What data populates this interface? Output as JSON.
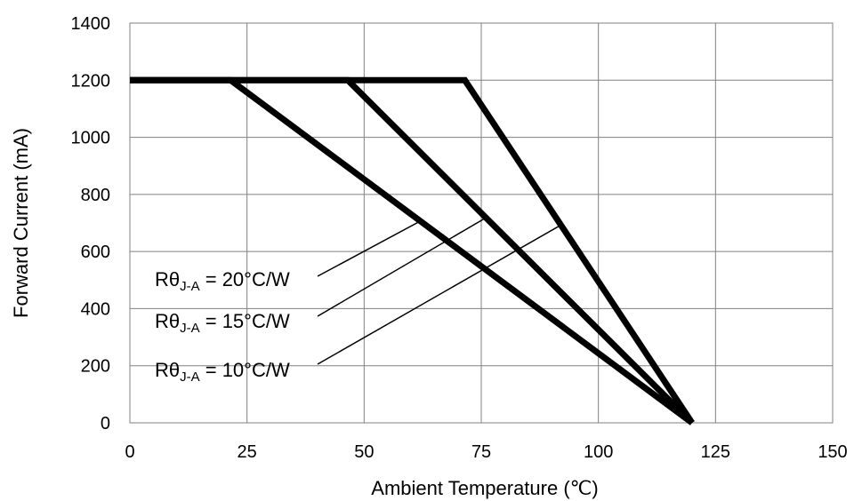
{
  "chart_data": {
    "type": "line",
    "xlabel": "Ambient Temperature (℃)",
    "ylabel": "Forward Current (mA)",
    "xlim": [
      0,
      150
    ],
    "ylim": [
      0,
      1400
    ],
    "xticks": [
      0,
      25,
      50,
      75,
      100,
      125,
      150
    ],
    "yticks": [
      0,
      200,
      400,
      600,
      800,
      1000,
      1200,
      1400
    ],
    "grid": true,
    "series": [
      {
        "name": "RθJ-A = 20°C/W",
        "x": [
          0,
          21.5,
          120
        ],
        "y": [
          1200,
          1200,
          0
        ]
      },
      {
        "name": "RθJ-A = 15°C/W",
        "x": [
          0,
          46.5,
          120
        ],
        "y": [
          1200,
          1200,
          0
        ]
      },
      {
        "name": "RθJ-A = 10°C/W",
        "x": [
          0,
          71.5,
          120
        ],
        "y": [
          1200,
          1200,
          0
        ]
      }
    ],
    "annotations": [
      {
        "prefix": "Rθ",
        "sub": "J-A",
        "suffix": " = 20°C/W",
        "series_index": 0
      },
      {
        "prefix": "Rθ",
        "sub": "J-A",
        "suffix": " = 15°C/W",
        "series_index": 1
      },
      {
        "prefix": "Rθ",
        "sub": "J-A",
        "suffix": " = 10°C/W",
        "series_index": 2
      }
    ],
    "line_color": "#000000",
    "grid_color": "#808080"
  }
}
